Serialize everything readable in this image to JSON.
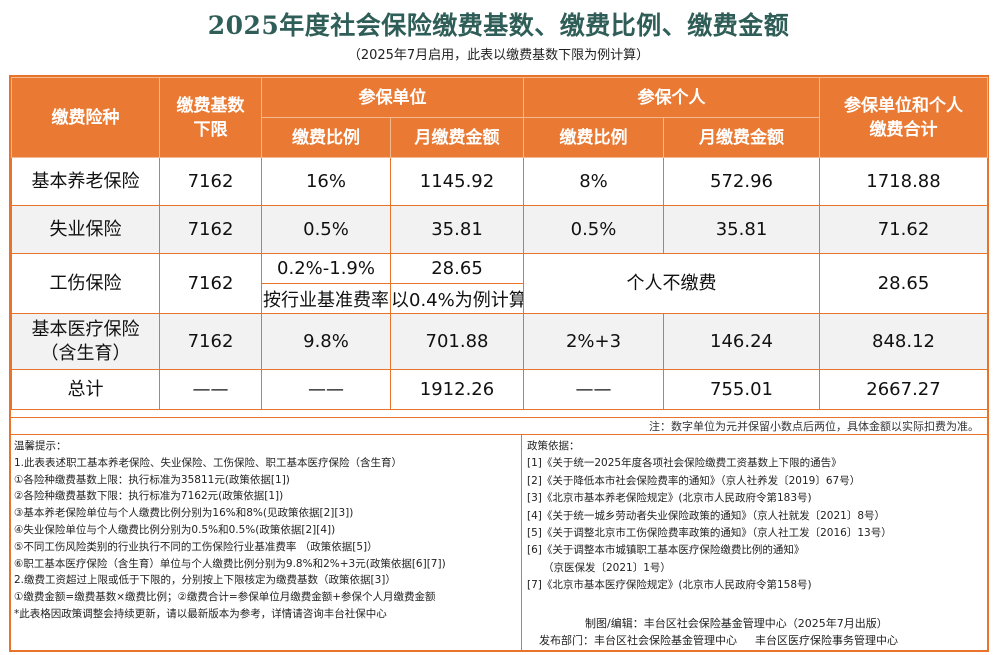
{
  "title": "2025年度社会保险缴费基数、缴费比例、缴费金额",
  "subtitle": "（2025年7月启用，此表以缴费基数下限为例计算）",
  "headers": {
    "type": "缴费险种",
    "base": "缴费基数\n下限",
    "employer": "参保单位",
    "individual": "参保个人",
    "total": "参保单位和个人\n缴费合计",
    "rate": "缴费比例",
    "monthly": "月缴费金额"
  },
  "rows": {
    "pension": {
      "name": "基本养老保险",
      "base": "7162",
      "emp_rate": "16%",
      "emp_amount": "1145.92",
      "ind_rate": "8%",
      "ind_amount": "572.96",
      "total": "1718.88"
    },
    "unemployment": {
      "name": "失业保险",
      "base": "7162",
      "emp_rate": "0.5%",
      "emp_amount": "35.81",
      "ind_rate": "0.5%",
      "ind_amount": "35.81",
      "total": "71.62"
    },
    "injury": {
      "name": "工伤保险",
      "base": "7162",
      "emp_rate": "0.2%-1.9%",
      "emp_amount": "28.65",
      "emp_rate_note": "按行业基准费率",
      "emp_amount_note": "以0.4%为例计算",
      "individual": "个人不缴费",
      "total": "28.65"
    },
    "medical": {
      "name": "基本医疗保险\n（含生育）",
      "base": "7162",
      "emp_rate": "9.8%",
      "emp_amount": "701.88",
      "ind_rate": "2%+3",
      "ind_amount": "146.24",
      "total": "848.12"
    },
    "sum": {
      "name": "总计",
      "base": "——",
      "emp_rate": "——",
      "emp_amount": "1912.26",
      "ind_rate": "——",
      "ind_amount": "755.01",
      "total": "2667.27"
    }
  },
  "note": "注：数字单位为元并保留小数点后两位，具体金额以实际扣费为准。",
  "tips": {
    "title": "温馨提示：",
    "lines": [
      "1.此表表述职工基本养老保险、失业保险、工伤保险、职工基本医疗保险（含生育）",
      "①各险种缴费基数上限：执行标准为35811元(政策依据[1])",
      "②各险种缴费基数下限：执行标准为7162元(政策依据[1])",
      "③基本养老保险单位与个人缴费比例分别为16%和8%(见政策依据[2][3])",
      "④失业保险单位与个人缴费比例分别为0.5%和0.5%(政策依据[2][4])",
      "⑤不同工伤风险类别的行业执行不同的工伤保险行业基准费率 （政策依据[5]）",
      "⑥职工基本医疗保险（含生育）单位与个人缴费比例分别为9.8%和2%+3元(政策依据[6][7])",
      "2.缴费工资超过上限或低于下限的，分别按上下限核定为缴费基数（政策依据[3]）",
      "①缴费金额=缴费基数×缴费比例；②缴费合计=参保单位月缴费金额+参保个人月缴费金额",
      "*此表格因政策调整会持续更新，请以最新版本为参考，详情请咨询丰台社保中心"
    ]
  },
  "policy": {
    "title": "政策依据：",
    "lines": [
      "[1]《关于统一2025年度各项社会保险缴费工资基数上下限的通告》",
      "[2]《关于降低本市社会保险费率的通知》（京人社养发〔2019〕67号）",
      "[3]《北京市基本养老保险规定》(北京市人民政府令第183号)",
      "[4]《关于统一城乡劳动者失业保险政策的通知》（京人社就发〔2021〕8号）",
      "[5]《关于调整北京市工伤保险费率政策的通知》（京人社工发〔2016〕13号）",
      "[6]《关于调整本市城镇职工基本医疗保险缴费比例的通知》",
      "（京医保发〔2021〕1号）",
      "[7]《北京市基本医疗保险规定》(北京市人民政府令第158号)"
    ],
    "credit_made": "制图/编辑：丰台区社会保险基金管理中心（2025年7月出版）",
    "credit_publisher_label": "发布部门：丰台区社会保险基金管理中心",
    "credit_publisher_2": "丰台区医疗保险事务管理中心"
  }
}
